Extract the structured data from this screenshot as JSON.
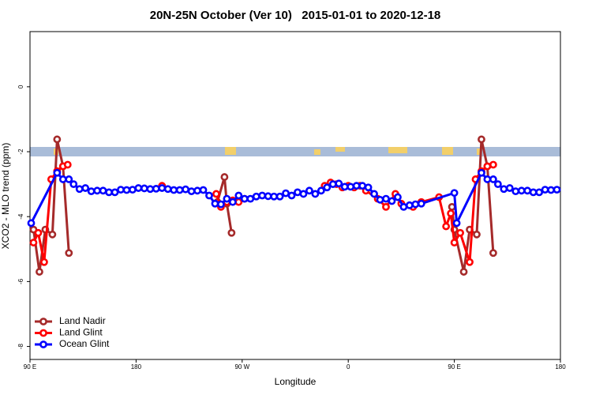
{
  "chart_data": {
    "type": "line",
    "title": "20N-25N October (Ver 10)   2015-01-01 to 2020-12-18",
    "x_label": "Longitude",
    "y_label": "XCO2 - MLO trend (ppm)",
    "xlim": [
      90,
      540
    ],
    "xticks": [
      {
        "value": 90,
        "label": "90 E"
      },
      180,
      {
        "value": 270,
        "label": "90 W"
      },
      {
        "value": 360,
        "label": "0"
      },
      {
        "value": 450,
        "label": "90 E"
      },
      {
        "value": 540,
        "label": "180"
      }
    ],
    "ylim": [
      -8.4,
      1.7
    ],
    "yticks": [
      0,
      -2,
      -4,
      -6,
      -8
    ],
    "legend": "bottom-left",
    "series": [
      {
        "name": "Land Nadir",
        "color": "#a52a2a",
        "x": [
          93,
          98,
          103,
          109,
          113,
          118,
          123,
          185,
          249,
          255,
          257,
          261,
          300,
          448,
          450,
          458,
          463,
          469,
          473,
          478,
          483
        ],
        "values": [
          -4.4,
          -5.7,
          -4.4,
          -4.55,
          -1.62,
          -2.45,
          -5.12,
          null,
          -3.55,
          -2.78,
          -3.6,
          -4.5,
          null,
          -3.7,
          -4.4,
          -5.7,
          -4.4,
          -4.55,
          -1.62,
          -2.45,
          -5.12
        ]
      },
      {
        "name": "Land Glint",
        "color": "#ff0000",
        "x": [
          93,
          97,
          102,
          108,
          113,
          118,
          122,
          160,
          202,
          230,
          248,
          252,
          257,
          262,
          267,
          272,
          300,
          340,
          345,
          350,
          355,
          360,
          365,
          370,
          375,
          385,
          392,
          400,
          405,
          415,
          422,
          437,
          443,
          447,
          450,
          455,
          463,
          468,
          473,
          478,
          483
        ],
        "values": [
          -4.8,
          -4.5,
          -5.4,
          -2.85,
          -2.6,
          -2.45,
          -2.4,
          null,
          -3.05,
          null,
          -3.3,
          -3.7,
          -3.55,
          -3.5,
          -3.55,
          -3.45,
          null,
          -3.05,
          -2.95,
          -3.0,
          -3.1,
          -3.05,
          -3.1,
          -3.05,
          -3.2,
          -3.45,
          -3.7,
          -3.3,
          -3.6,
          -3.7,
          -3.55,
          -3.4,
          -4.3,
          -3.9,
          -4.8,
          -4.5,
          -5.4,
          -2.85,
          -2.6,
          -2.45,
          -2.4
        ]
      },
      {
        "name": "Ocean Glint",
        "color": "#0000ff",
        "x": [
          91,
          113,
          118,
          123,
          127,
          132,
          137,
          142,
          147,
          152,
          157,
          162,
          167,
          172,
          177,
          182,
          187,
          192,
          197,
          202,
          207,
          212,
          217,
          222,
          227,
          232,
          237,
          242,
          247,
          252,
          257,
          262,
          267,
          272,
          277,
          282,
          287,
          292,
          297,
          302,
          307,
          312,
          317,
          322,
          327,
          332,
          337,
          342,
          347,
          352,
          357,
          362,
          367,
          372,
          377,
          382,
          387,
          392,
          397,
          402,
          407,
          412,
          417,
          422,
          450,
          452,
          473,
          478,
          483,
          487,
          492,
          497,
          502,
          507,
          512,
          517,
          522,
          527,
          532,
          537
        ],
        "values": [
          -4.2,
          -2.65,
          -2.85,
          -2.85,
          -3.0,
          -3.15,
          -3.12,
          -3.22,
          -3.2,
          -3.2,
          -3.25,
          -3.25,
          -3.17,
          -3.18,
          -3.17,
          -3.12,
          -3.13,
          -3.15,
          -3.14,
          -3.12,
          -3.15,
          -3.18,
          -3.18,
          -3.16,
          -3.22,
          -3.2,
          -3.18,
          -3.35,
          -3.6,
          -3.62,
          -3.45,
          -3.55,
          -3.35,
          -3.45,
          -3.45,
          -3.38,
          -3.35,
          -3.37,
          -3.38,
          -3.38,
          -3.28,
          -3.35,
          -3.25,
          -3.3,
          -3.2,
          -3.3,
          -3.2,
          -3.1,
          -3.0,
          -2.98,
          -3.08,
          -3.08,
          -3.05,
          -3.05,
          -3.1,
          -3.3,
          -3.48,
          -3.45,
          -3.52,
          -3.4,
          -3.7,
          -3.65,
          -3.62,
          -3.6,
          -3.27,
          -4.2,
          -2.65,
          -2.85,
          -2.85,
          -3.0,
          -3.15,
          -3.12,
          -3.22,
          -3.2,
          -3.2,
          -3.25,
          -3.25,
          -3.17,
          -3.18,
          -3.17
        ]
      }
    ]
  }
}
